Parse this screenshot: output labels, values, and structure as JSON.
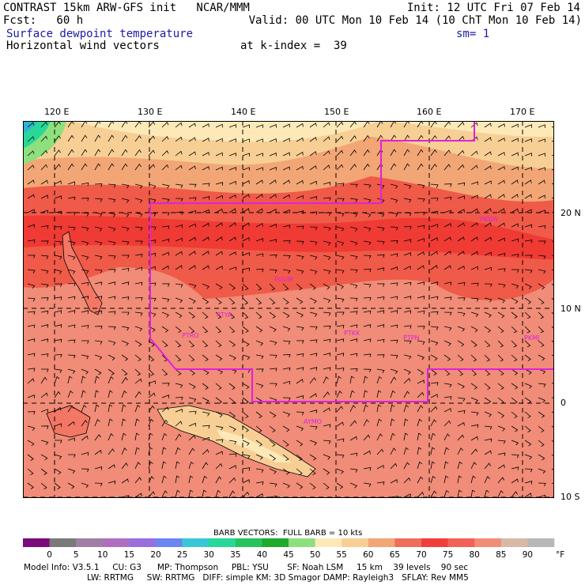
{
  "header": {
    "line1_left": "CONTRAST 15km ARW-GFS init   NCAR/MMM",
    "line1_right": "Init: 12 UTC Fri 07 Feb 14",
    "line2_left": "Fcst:   60 h",
    "line2_right": "Valid: 00 UTC Mon 10 Feb 14 (10 ChT Mon 10 Feb 14)",
    "line3_left": "Surface dewpoint temperature",
    "line3_right": "sm= 1",
    "line4_left": "Horizontal wind vectors",
    "line4_right": "at k-index =  39"
  },
  "axes": {
    "lon_labels": [
      "120 E",
      "130 E",
      "140 E",
      "150 E",
      "160 E",
      "170 E"
    ],
    "lat_labels": [
      "20 N",
      "10 N",
      "0",
      "10 S"
    ]
  },
  "stations": [
    "PGUM",
    "PTRO",
    "PTYA",
    "PTKK",
    "PTPN",
    "PKMJ",
    "PKWA",
    "AYMO"
  ],
  "legend": {
    "barb_title": "BARB VECTORS:  FULL BARB = 10 kts",
    "ticks": [
      "0",
      "5",
      "10",
      "15",
      "20",
      "25",
      "30",
      "35",
      "40",
      "45",
      "50",
      "55",
      "60",
      "65",
      "70",
      "75",
      "80",
      "85",
      "90"
    ],
    "unit": "°F",
    "colors": [
      "#7b0a7b",
      "#7a7a7a",
      "#9f7fa6",
      "#b06ec1",
      "#9b6ee0",
      "#6b86f0",
      "#39c7d8",
      "#28d896",
      "#26c45a",
      "#1faa2e",
      "#8ee07e",
      "#fde9b8",
      "#f7cf95",
      "#f2a676",
      "#ee6f5b",
      "#f03f3a",
      "#f26256",
      "#f08c77",
      "#d8b9a6",
      "#b8b8b8"
    ]
  },
  "footer": {
    "line1": "Model Info: V3.5.1     CU: G3      MP: Thompson     PBL: YSU       SF: Noah LSM     15 km    39 levels    90 sec",
    "line2": "LW: RRTMG     SW: RRTMG   DIFF: simple KM: 3D Smagor DAMP: Rayleigh3   SFLAY: Rev MM5"
  }
}
